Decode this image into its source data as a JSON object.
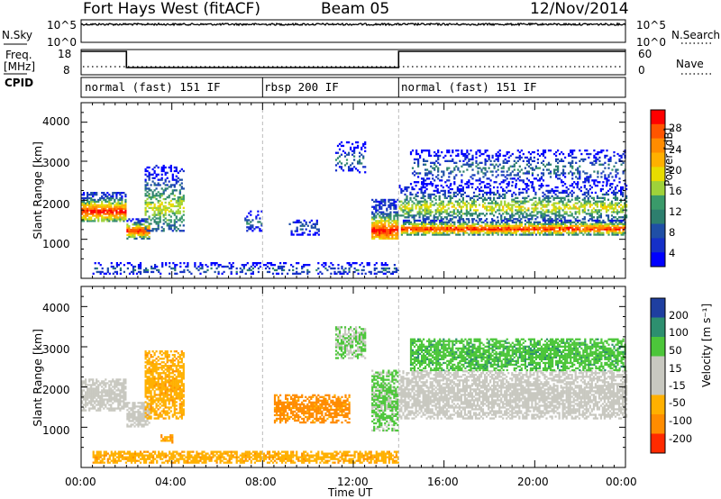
{
  "header": {
    "station": "Fort Hays West (fitACF)",
    "beam": "Beam 05",
    "date": "12/Nov/2014"
  },
  "left_labels": {
    "nsky": "N.Sky",
    "nsky_top": "10^5",
    "nsky_bottom": "10^0",
    "freq_line1": "Freq.",
    "freq_line2": "[MHz]",
    "freq_top": "18",
    "freq_bottom": "8",
    "cpid": "CPID"
  },
  "right_labels": {
    "nsearch": "N.Search",
    "nsearch_top": "10^5",
    "nsearch_bottom": "10^0",
    "nave": "Nave",
    "nave_top": "60",
    "nave_bottom": "0"
  },
  "cpid_modes": [
    "normal (fast) 151 IF",
    "rbsp 200 IF",
    "normal (fast) 151 IF"
  ],
  "x_ticks": [
    "00:00",
    "04:00",
    "08:00",
    "12:00",
    "16:00",
    "20:00",
    "00:00"
  ],
  "x_label": "Time UT",
  "y_label": "Slant Range [km]",
  "y_ticks": [
    "1000",
    "2000",
    "3000",
    "4000"
  ],
  "power_colorbar": {
    "label": "Power [dB]",
    "ticks": [
      "28",
      "24",
      "20",
      "16",
      "12",
      "8",
      "4"
    ],
    "colors": [
      "#ff0000",
      "#ff5500",
      "#ff8c00",
      "#ffb000",
      "#e8dc00",
      "#9fd23a",
      "#3a9a6a",
      "#2d7f6e",
      "#1f4fa6",
      "#1530c8",
      "#0000ff"
    ]
  },
  "velocity_colorbar": {
    "label": "Velocity [m s⁻¹]",
    "ticks": [
      "200",
      "100",
      "50",
      "15",
      "-15",
      "-50",
      "-100",
      "-200"
    ],
    "colors": [
      "#1f3fa0",
      "#2d8f6f",
      "#4cc63a",
      "#c8c8c0",
      "#c8c8c0",
      "#ffb000",
      "#ff8c00",
      "#ff2a00"
    ]
  },
  "chart_data": [
    {
      "type": "line",
      "name": "N.Sky",
      "x_range_hours": [
        0,
        24
      ],
      "ylim": [
        1,
        100000
      ],
      "y_scale": "log",
      "typical_value_fraction": 0.2
    },
    {
      "type": "line",
      "name": "Freq.",
      "ylabel": "Freq. [MHz]",
      "ylim": [
        8,
        18
      ],
      "segments": [
        {
          "start": 0.0,
          "end": 2.0,
          "value_mhz": 18
        },
        {
          "start": 2.0,
          "end": 14.0,
          "value_mhz": 10.5
        },
        {
          "start": 14.0,
          "end": 24.0,
          "value_mhz": 18
        }
      ],
      "nave_dotted_level": "low"
    },
    {
      "type": "heatmap",
      "title": "Power [dB]",
      "xlabel": "Time UT",
      "ylabel": "Slant Range [km]",
      "x_range_hours": [
        0,
        24
      ],
      "ylim": [
        0,
        4500
      ],
      "cpid_switch_hours": [
        8.0,
        14.0
      ],
      "regions": [
        {
          "t0": 0.0,
          "t1": 2.0,
          "r0": 1450,
          "r1": 2200,
          "peak": 1700,
          "level": "high"
        },
        {
          "t0": 2.0,
          "t1": 3.0,
          "r0": 1000,
          "r1": 1500,
          "peak": 1200,
          "level": "high"
        },
        {
          "t0": 2.8,
          "t1": 4.5,
          "r0": 1200,
          "r1": 2900,
          "peak": 1800,
          "level": "medium"
        },
        {
          "t0": 7.2,
          "t1": 8.0,
          "r0": 1200,
          "r1": 1700,
          "peak": 1400,
          "level": "low"
        },
        {
          "t0": 9.0,
          "t1": 10.5,
          "r0": 1100,
          "r1": 1500,
          "peak": 1300,
          "level": "low"
        },
        {
          "t0": 11.2,
          "t1": 12.5,
          "r0": 2700,
          "r1": 3500,
          "peak": 3000,
          "level": "low"
        },
        {
          "t0": 12.8,
          "t1": 14.0,
          "r0": 1000,
          "r1": 2000,
          "peak": 1200,
          "level": "high"
        },
        {
          "t0": 14.1,
          "t1": 24.0,
          "r0": 1100,
          "r1": 1500,
          "peak": 1250,
          "level": "high"
        },
        {
          "t0": 14.0,
          "t1": 24.0,
          "r0": 1500,
          "r1": 2400,
          "peak": 1800,
          "level": "medium"
        },
        {
          "t0": 14.5,
          "t1": 24.0,
          "r0": 2400,
          "r1": 3300,
          "peak": 2800,
          "level": "low"
        },
        {
          "t0": 0.5,
          "t1": 14.0,
          "r0": 100,
          "r1": 400,
          "peak": 200,
          "level": "low"
        }
      ]
    },
    {
      "type": "heatmap",
      "title": "Velocity [m s⁻¹]",
      "xlabel": "Time UT",
      "ylabel": "Slant Range [km]",
      "x_range_hours": [
        0,
        24
      ],
      "ylim": [
        0,
        4500
      ],
      "cpid_switch_hours": [
        8.0,
        14.0
      ],
      "regions": [
        {
          "t0": 0.0,
          "t1": 2.0,
          "r0": 1400,
          "r1": 2200,
          "velocity": 0
        },
        {
          "t0": 2.0,
          "t1": 3.0,
          "r0": 1000,
          "r1": 1600,
          "velocity": 0
        },
        {
          "t0": 2.8,
          "t1": 4.5,
          "r0": 1200,
          "r1": 2900,
          "velocity": -60
        },
        {
          "t0": 3.5,
          "t1": 4.0,
          "r0": 600,
          "r1": 800,
          "velocity": -70
        },
        {
          "t0": 8.5,
          "t1": 11.8,
          "r0": 1100,
          "r1": 1800,
          "velocity": -90
        },
        {
          "t0": 11.2,
          "t1": 12.5,
          "r0": 2700,
          "r1": 3500,
          "velocity": 30
        },
        {
          "t0": 12.8,
          "t1": 14.0,
          "r0": 900,
          "r1": 2400,
          "velocity": 40
        },
        {
          "t0": 14.0,
          "t1": 24.0,
          "r0": 1200,
          "r1": 2400,
          "velocity": 0
        },
        {
          "t0": 14.5,
          "t1": 24.0,
          "r0": 2400,
          "r1": 3200,
          "velocity": 60
        },
        {
          "t0": 0.5,
          "t1": 14.0,
          "r0": 100,
          "r1": 400,
          "velocity": -60
        }
      ]
    }
  ]
}
